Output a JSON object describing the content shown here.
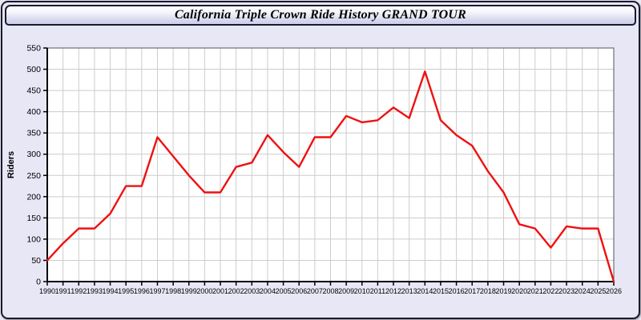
{
  "window": {
    "title": "California Triple Crown Ride History GRAND TOUR"
  },
  "colors": {
    "page_bg": "#e9e9f7",
    "panel_bg": "#e7e7f6",
    "plot_bg": "#ffffff",
    "grid": "#cccccc",
    "plot_border": "#555555",
    "axis": "#000000",
    "line": "#ee1111",
    "text": "#000000"
  },
  "chart_data": {
    "type": "line",
    "title": "California Triple Crown Ride History GRAND TOUR",
    "xlabel": "",
    "ylabel": "Riders",
    "x": [
      1990,
      1991,
      1992,
      1993,
      1994,
      1995,
      1996,
      1997,
      1998,
      1999,
      2000,
      2001,
      2002,
      2003,
      2004,
      2005,
      2006,
      2007,
      2008,
      2009,
      2010,
      2011,
      2012,
      2013,
      2014,
      2015,
      2016,
      2017,
      2018,
      2019,
      2020,
      2021,
      2022,
      2023,
      2024,
      2025,
      2026
    ],
    "series": [
      {
        "name": "Riders",
        "color": "#ee1111",
        "values": [
          50,
          90,
          125,
          125,
          160,
          225,
          225,
          340,
          295,
          250,
          210,
          210,
          270,
          280,
          345,
          305,
          270,
          340,
          340,
          390,
          375,
          380,
          410,
          385,
          495,
          380,
          345,
          320,
          260,
          210,
          135,
          125,
          80,
          130,
          125,
          125,
          0
        ]
      }
    ],
    "ylim": [
      0,
      550
    ],
    "ytick_step": 50,
    "grid": true,
    "legend_position": "none"
  }
}
